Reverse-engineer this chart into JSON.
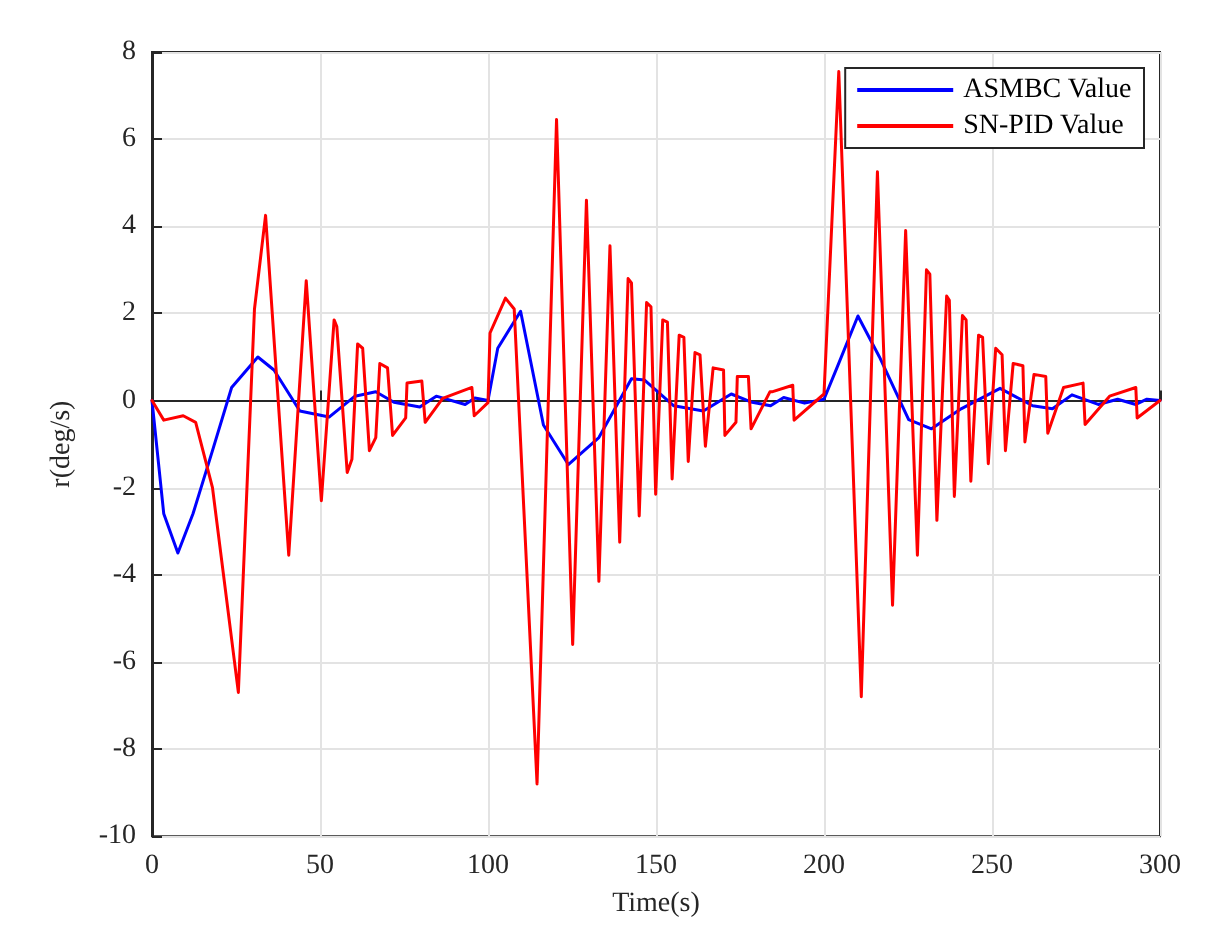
{
  "chart_data": {
    "type": "line",
    "xlabel": "Time(s)",
    "ylabel": "r(deg/s)",
    "xlim": [
      0,
      300
    ],
    "xticks": [
      0,
      50,
      100,
      150,
      200,
      250,
      300
    ],
    "ylim": [
      -10,
      8
    ],
    "yticks": [
      -10,
      -8,
      -6,
      -4,
      -2,
      0,
      2,
      4,
      6,
      8
    ],
    "grid": true,
    "legend": "top right",
    "marker": "none",
    "line_style": "solid",
    "series": [
      {
        "name": "ASMBC Value",
        "color": "#0000ff",
        "x": [
          0,
          3.5,
          7.7,
          12.2,
          18,
          23.7,
          31.5,
          36.3,
          44,
          52.7,
          60.4,
          66.6,
          72,
          79.7,
          84.6,
          93.2,
          96.1,
          100,
          102.9,
          109.7,
          116.5,
          123.9,
          133,
          142.7,
          146.6,
          155.3,
          164.1,
          172.4,
          178.6,
          184.1,
          188,
          194.2,
          200,
          203.9,
          210.1,
          216.5,
          225.2,
          232,
          240.8,
          252.4,
          262.1,
          268,
          273.8,
          281.6,
          287.4,
          292.8,
          296.1,
          300
        ],
        "values": [
          0,
          -2.6,
          -3.5,
          -2.6,
          -1.15,
          0.3,
          1.0,
          0.7,
          -0.24,
          -0.38,
          0.1,
          0.2,
          -0.04,
          -0.15,
          0.1,
          -0.09,
          0.06,
          0,
          1.2,
          2.05,
          -0.56,
          -1.47,
          -0.85,
          0.5,
          0.47,
          -0.12,
          -0.24,
          0.15,
          -0.04,
          -0.12,
          0.07,
          -0.06,
          0.03,
          0.76,
          1.94,
          1.0,
          -0.44,
          -0.65,
          -0.19,
          0.28,
          -0.12,
          -0.19,
          0.13,
          -0.09,
          0.03,
          -0.09,
          0.03,
          0
        ]
      },
      {
        "name": "SN-PID Value",
        "color": "#ff0000",
        "x": [
          0,
          3.5,
          9.3,
          13,
          18,
          25.7,
          30.5,
          33.8,
          40.7,
          45.9,
          50.4,
          54.2,
          55,
          58.1,
          59.5,
          61.2,
          62.7,
          64.7,
          66.6,
          67.8,
          70.1,
          71.6,
          75.5,
          75.9,
          80.3,
          81.3,
          86.5,
          95.2,
          95.9,
          100,
          100.6,
          105.2,
          107.8,
          114.6,
          120.4,
          125.2,
          129.3,
          133,
          136.3,
          139.2,
          141.7,
          142.7,
          145,
          147.2,
          148.5,
          149.9,
          152,
          153.4,
          154.8,
          156.9,
          158.3,
          159.6,
          161.6,
          163.1,
          164.7,
          167,
          170.1,
          170.5,
          173.8,
          174.2,
          177.5,
          178.3,
          183.9,
          184.5,
          190.7,
          191.1,
          200,
          204.4,
          211.1,
          215.9,
          220.4,
          224.3,
          227.8,
          230.5,
          231.5,
          233.6,
          236.5,
          237.3,
          238.8,
          241.2,
          242.3,
          243.7,
          246,
          247.2,
          248.9,
          251.1,
          253,
          254,
          256.3,
          259.2,
          259.8,
          262.5,
          266,
          266.6,
          271.3,
          277.1,
          277.7,
          285,
          292.8,
          293.2,
          300
        ],
        "values": [
          0,
          -0.45,
          -0.35,
          -0.5,
          -2.0,
          -6.7,
          2.1,
          4.25,
          -3.55,
          2.75,
          -2.3,
          1.85,
          1.7,
          -1.65,
          -1.35,
          1.3,
          1.2,
          -1.15,
          -0.85,
          0.85,
          0.75,
          -0.8,
          -0.4,
          0.4,
          0.45,
          -0.5,
          0.05,
          0.3,
          -0.35,
          -0.05,
          1.55,
          2.35,
          2.1,
          -8.8,
          6.45,
          -5.6,
          4.6,
          -4.15,
          3.55,
          -3.25,
          2.8,
          2.7,
          -2.65,
          2.25,
          2.15,
          -2.15,
          1.85,
          1.8,
          -1.8,
          1.5,
          1.45,
          -1.4,
          1.1,
          1.05,
          -1.05,
          0.75,
          0.7,
          -0.8,
          -0.5,
          0.55,
          0.55,
          -0.65,
          0.2,
          0.2,
          0.35,
          -0.45,
          0.15,
          7.55,
          -6.8,
          5.25,
          -4.7,
          3.9,
          -3.55,
          3.0,
          2.9,
          -2.75,
          2.4,
          2.3,
          -2.2,
          1.95,
          1.85,
          -1.85,
          1.5,
          1.45,
          -1.45,
          1.2,
          1.05,
          -1.15,
          0.85,
          0.8,
          -0.95,
          0.6,
          0.55,
          -0.75,
          0.3,
          0.4,
          -0.55,
          0.1,
          0.3,
          -0.4,
          0
        ]
      }
    ]
  }
}
